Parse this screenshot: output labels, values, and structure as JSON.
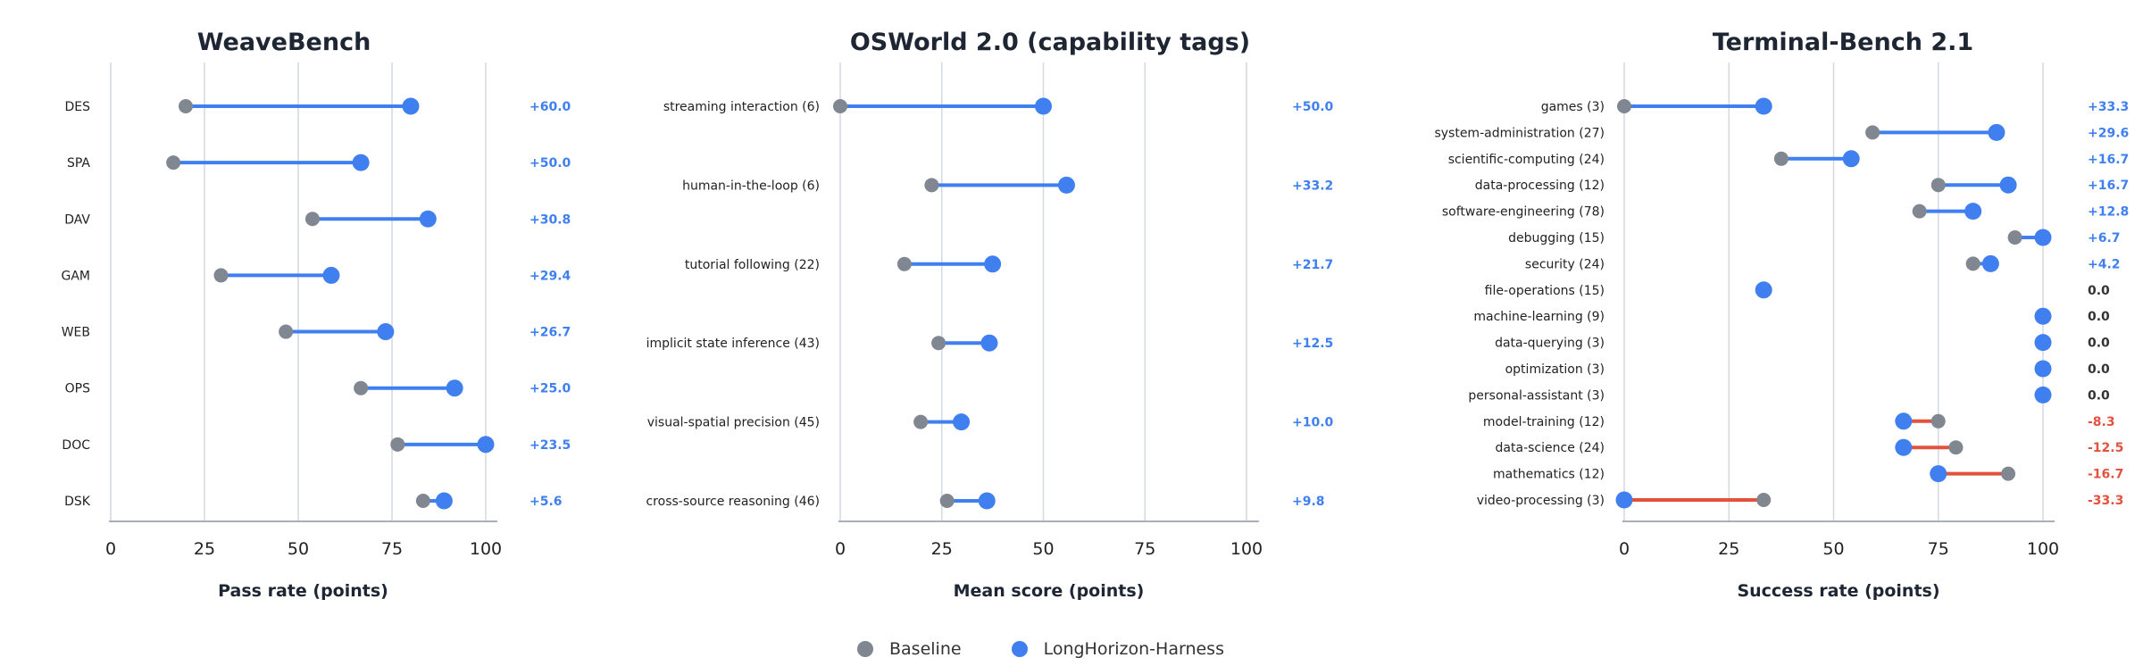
{
  "colors": {
    "baseline": "#808791",
    "harness": "#3f7ff0",
    "positive": "#3f7ff0",
    "negative": "#e3523f",
    "gridline": "#d3d9e1",
    "axis": "#a7b0bb",
    "title": "#1e2633"
  },
  "legend": {
    "baseline": "Baseline",
    "harness": "LongHorizon-Harness"
  },
  "chart_data": [
    {
      "type": "dumbbell",
      "title": "WeaveBench",
      "xlabel": "Pass rate (points)",
      "xlim": [
        0,
        100
      ],
      "xticks": [
        0,
        25,
        50,
        75,
        100
      ],
      "grid": true,
      "categories": [
        "DES",
        "SPA",
        "DAV",
        "GAM",
        "WEB",
        "OPS",
        "DOC",
        "DSK"
      ],
      "series": [
        {
          "name": "Baseline",
          "values": [
            20,
            16.7,
            53.8,
            29.4,
            46.7,
            66.7,
            76.5,
            83.3
          ]
        },
        {
          "name": "LongHorizon-Harness",
          "values": [
            80,
            66.7,
            84.6,
            58.8,
            73.3,
            91.7,
            100,
            88.9
          ]
        }
      ],
      "delta_labels": [
        "+60.0",
        "+50.0",
        "+30.8",
        "+29.4",
        "+26.7",
        "+25.0",
        "+23.5",
        "+5.6"
      ]
    },
    {
      "type": "dumbbell",
      "title": "OSWorld 2.0 (capability tags)",
      "xlabel": "Mean score (points)",
      "xlim": [
        0,
        100
      ],
      "xticks": [
        0,
        25,
        50,
        75,
        100
      ],
      "grid": true,
      "categories": [
        "streaming interaction (6)",
        "human-in-the-loop (6)",
        "tutorial following (22)",
        "implicit state inference (43)",
        "visual-spatial precision (45)",
        "cross-source reasoning (46)"
      ],
      "series": [
        {
          "name": "Baseline",
          "values": [
            0,
            22.5,
            15.8,
            24.2,
            19.8,
            26.3
          ]
        },
        {
          "name": "LongHorizon-Harness",
          "values": [
            50,
            55.7,
            37.5,
            36.7,
            29.8,
            36.1
          ]
        }
      ],
      "delta_labels": [
        "+50.0",
        "+33.2",
        "+21.7",
        "+12.5",
        "+10.0",
        "+9.8"
      ]
    },
    {
      "type": "dumbbell",
      "title": "Terminal-Bench 2.1",
      "xlabel": "Success rate (points)",
      "xlim": [
        0,
        100
      ],
      "xticks": [
        0,
        25,
        50,
        75,
        100
      ],
      "grid": true,
      "categories": [
        "games (3)",
        "system-administration (27)",
        "scientific-computing (24)",
        "data-processing (12)",
        "software-engineering (78)",
        "debugging (15)",
        "security (24)",
        "file-operations (15)",
        "machine-learning (9)",
        "data-querying (3)",
        "optimization (3)",
        "personal-assistant (3)",
        "model-training (12)",
        "data-science (24)",
        "mathematics (12)",
        "video-processing (3)"
      ],
      "series": [
        {
          "name": "Baseline",
          "values": [
            0,
            59.3,
            37.5,
            75,
            70.5,
            93.3,
            83.3,
            33.3,
            100,
            100,
            100,
            100,
            75,
            79.2,
            91.7,
            33.3
          ]
        },
        {
          "name": "LongHorizon-Harness",
          "values": [
            33.3,
            88.9,
            54.2,
            91.7,
            83.3,
            100,
            87.5,
            33.3,
            100,
            100,
            100,
            100,
            66.7,
            66.7,
            75,
            0
          ]
        }
      ],
      "delta_labels": [
        "+33.3",
        "+29.6",
        "+16.7",
        "+16.7",
        "+12.8",
        "+6.7",
        "+4.2",
        "0.0",
        "0.0",
        "0.0",
        "0.0",
        "0.0",
        "-8.3",
        "-12.5",
        "-16.7",
        "-33.3"
      ]
    }
  ]
}
